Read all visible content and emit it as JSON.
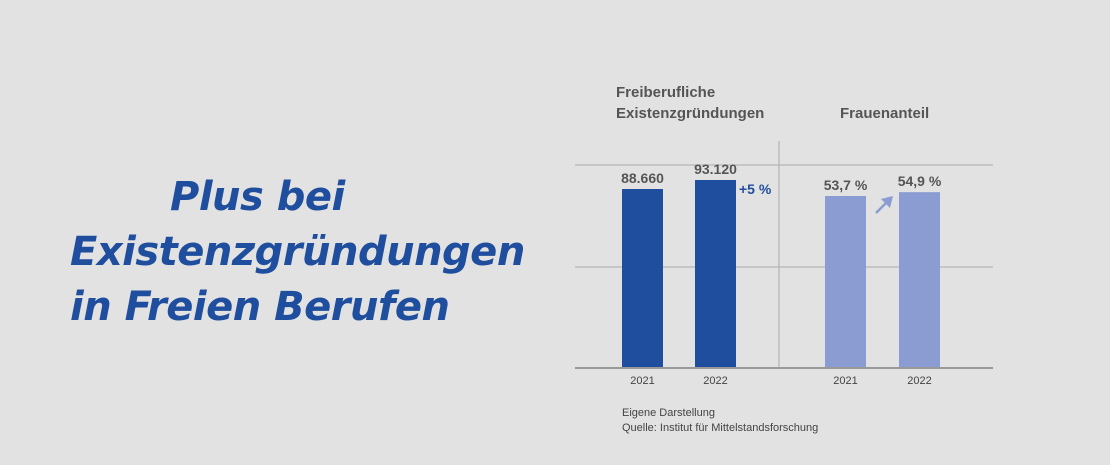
{
  "headline": {
    "line1": "Plus bei",
    "line2": "Existenzgründungen",
    "line3": "in Freien Berufen"
  },
  "colors": {
    "background": "#e2e2e2",
    "headline": "#1f4e9e",
    "dark_bar": "#1f4e9e",
    "light_bar": "#8a9cd2",
    "grid": "#aaaaaa",
    "label": "#555555"
  },
  "chart_data": [
    {
      "type": "bar",
      "title_line1": "Freiberufliche",
      "title_line2": "Existenzgründungen",
      "categories": [
        "2021",
        "2022"
      ],
      "values": [
        88660,
        93120
      ],
      "value_labels": [
        "88.660",
        "93.120"
      ],
      "change_label": "+5 %",
      "ylim": [
        0,
        100000
      ],
      "grid": true
    },
    {
      "type": "bar",
      "title": "Frauenanteil",
      "categories": [
        "2021",
        "2022"
      ],
      "values": [
        53.7,
        54.9
      ],
      "value_labels": [
        "53,7 %",
        "54,9 %"
      ],
      "change_icon": "arrow-up-right-icon",
      "ylim": [
        0,
        60
      ],
      "grid": true
    }
  ],
  "footnote": {
    "line1": "Eigene Darstellung",
    "line2": "Quelle: Institut für Mittelstandsforschung"
  }
}
